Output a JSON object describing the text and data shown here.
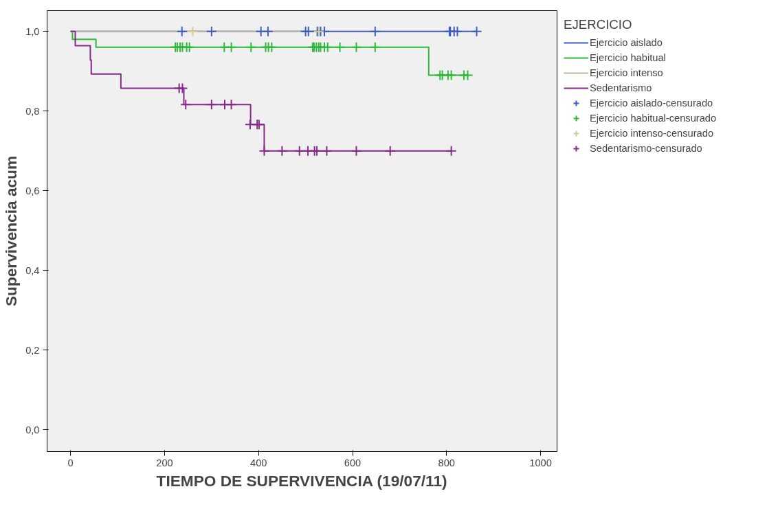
{
  "chart_data": {
    "type": "step",
    "xlabel": "TIEMPO DE SUPERVIVENCIA (19/07/11)",
    "ylabel": "Supervivencia acum",
    "legend_title": "EJERCICIO",
    "legend": "right",
    "grid": false,
    "xlim": [
      -50,
      1035
    ],
    "ylim": [
      -0.055,
      1.052
    ],
    "xticks": [
      0,
      200,
      400,
      600,
      800,
      1000
    ],
    "yticks": [
      {
        "value": 0,
        "label": "0,0"
      },
      {
        "value": 0.2,
        "label": "0,2"
      },
      {
        "value": 0.4,
        "label": "0,4"
      },
      {
        "value": 0.6,
        "label": "0,6"
      },
      {
        "value": 0.8,
        "label": "0,8"
      },
      {
        "value": 1,
        "label": "1,0"
      }
    ],
    "series": [
      {
        "name": "Ejercicio aislado",
        "marker": "none",
        "color": "#3e5dbf",
        "x": [
          0,
          864
        ],
        "values": [
          1,
          1
        ]
      },
      {
        "name": "Ejercicio habitual",
        "marker": "none",
        "color": "#2fb93a",
        "x": [
          0,
          4,
          54,
          762,
          845
        ],
        "values": [
          1,
          0.98,
          0.96,
          0.89,
          0.89
        ]
      },
      {
        "name": "Ejercicio intenso",
        "marker": "none",
        "color": "#bdb99a",
        "x": [
          0,
          528
        ],
        "values": [
          1,
          1
        ]
      },
      {
        "name": "Sedentarismo",
        "marker": "none",
        "color": "#862a8a",
        "x": [
          0,
          10,
          42,
          44,
          107,
          241,
          383,
          412,
          810
        ],
        "values": [
          1,
          0.964,
          0.928,
          0.893,
          0.857,
          0.816,
          0.766,
          0.7,
          0.7
        ]
      },
      {
        "name": "Ejercicio aislado-censurado",
        "type": "scatter",
        "marker": "cross",
        "color": "#3e5dbf",
        "x": [
          237,
          300,
          405,
          420,
          500,
          506,
          525,
          532,
          540,
          648,
          806,
          808,
          816,
          823,
          864
        ],
        "values": [
          1,
          1,
          1,
          1,
          1,
          1,
          1,
          1,
          1,
          1,
          1,
          1,
          1,
          1,
          1
        ]
      },
      {
        "name": "Ejercicio habitual-censurado",
        "type": "scatter",
        "marker": "cross",
        "color": "#2fb93a",
        "x": [
          223,
          227,
          233,
          238,
          247,
          253,
          327,
          342,
          384,
          415,
          421,
          428,
          515,
          518,
          523,
          528,
          532,
          540,
          547,
          573,
          608,
          648,
          786,
          791,
          803,
          810,
          837,
          845
        ],
        "values": [
          0.96,
          0.96,
          0.96,
          0.96,
          0.96,
          0.96,
          0.96,
          0.96,
          0.96,
          0.96,
          0.96,
          0.96,
          0.96,
          0.96,
          0.96,
          0.96,
          0.96,
          0.96,
          0.96,
          0.96,
          0.96,
          0.96,
          0.89,
          0.89,
          0.89,
          0.89,
          0.89,
          0.89
        ]
      },
      {
        "name": "Ejercicio intenso-censurado",
        "type": "scatter",
        "marker": "cross",
        "color": "#d4cc94",
        "x": [
          260,
          528
        ],
        "values": [
          1,
          1
        ]
      },
      {
        "name": "Sedentarismo-censurado",
        "type": "scatter",
        "marker": "cross",
        "color": "#862a8a",
        "x": [
          231,
          238,
          245,
          300,
          328,
          342,
          382,
          397,
          401,
          412,
          450,
          487,
          505,
          519,
          524,
          545,
          608,
          680,
          810
        ],
        "values": [
          0.857,
          0.857,
          0.816,
          0.816,
          0.816,
          0.816,
          0.766,
          0.766,
          0.766,
          0.7,
          0.7,
          0.7,
          0.7,
          0.7,
          0.7,
          0.7,
          0.7,
          0.7,
          0.7
        ]
      }
    ]
  }
}
